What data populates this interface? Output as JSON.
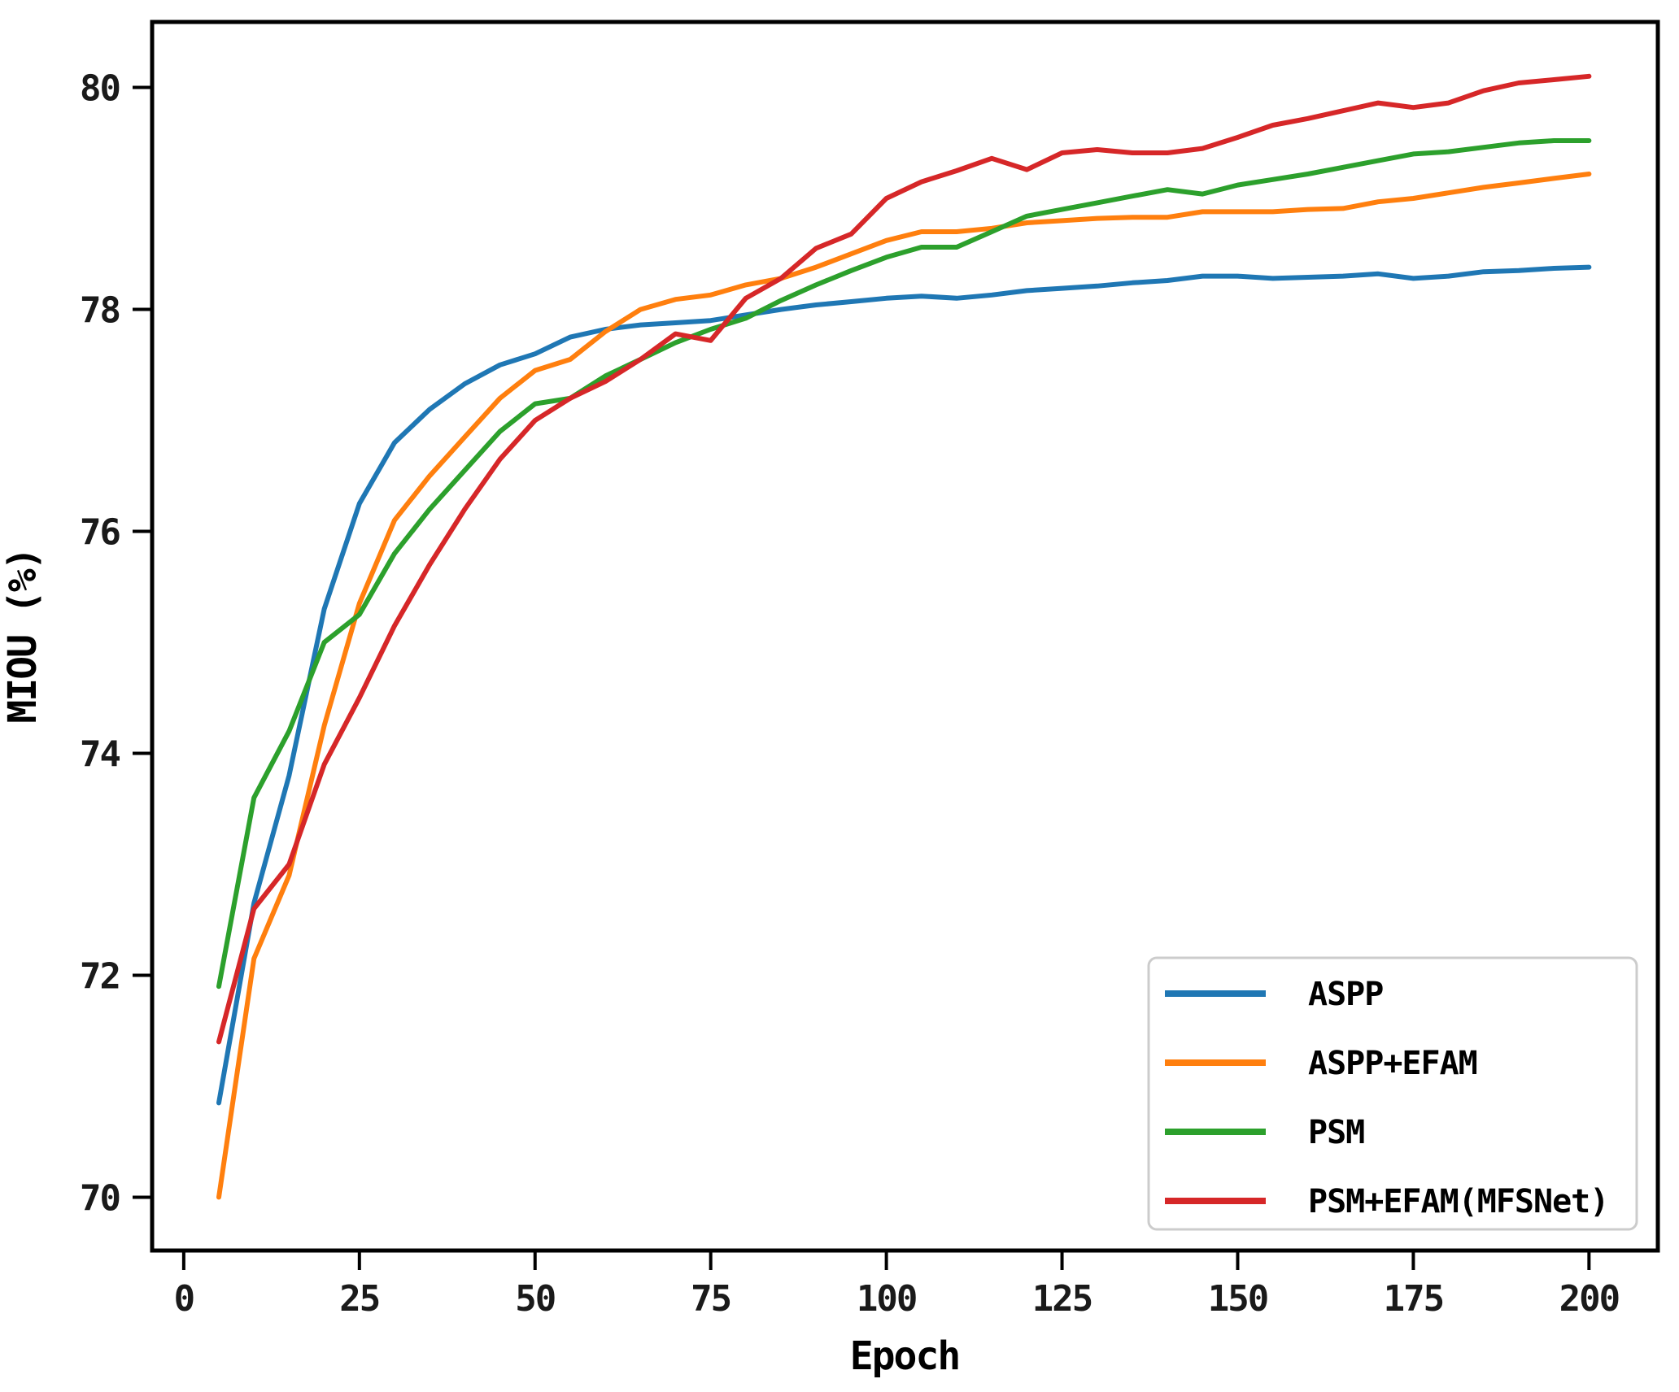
{
  "chart_data": {
    "type": "line",
    "title": "",
    "xlabel": "Epoch",
    "ylabel": "MIOU (%)",
    "x": [
      5,
      10,
      15,
      20,
      25,
      30,
      35,
      40,
      45,
      50,
      55,
      60,
      65,
      70,
      75,
      80,
      85,
      90,
      95,
      100,
      105,
      110,
      115,
      120,
      125,
      130,
      135,
      140,
      145,
      150,
      155,
      160,
      165,
      170,
      175,
      180,
      185,
      190,
      195,
      200
    ],
    "series": [
      {
        "name": "ASPP",
        "color": "#1f77b4",
        "values": [
          70.85,
          72.65,
          73.8,
          75.3,
          76.25,
          76.8,
          77.1,
          77.33,
          77.5,
          77.6,
          77.75,
          77.82,
          77.86,
          77.88,
          77.9,
          77.95,
          78.0,
          78.04,
          78.07,
          78.1,
          78.12,
          78.1,
          78.13,
          78.17,
          78.19,
          78.21,
          78.24,
          78.26,
          78.3,
          78.3,
          78.28,
          78.29,
          78.3,
          78.32,
          78.28,
          78.3,
          78.34,
          78.35,
          78.37,
          78.38
        ]
      },
      {
        "name": "ASPP+EFAM",
        "color": "#ff7f0e",
        "values": [
          70.0,
          72.15,
          72.9,
          74.25,
          75.35,
          76.1,
          76.5,
          76.85,
          77.2,
          77.45,
          77.55,
          77.8,
          78.0,
          78.09,
          78.13,
          78.22,
          78.28,
          78.38,
          78.5,
          78.62,
          78.7,
          78.7,
          78.73,
          78.78,
          78.8,
          78.82,
          78.83,
          78.83,
          78.88,
          78.88,
          78.88,
          78.9,
          78.91,
          78.97,
          79.0,
          79.05,
          79.1,
          79.14,
          79.18,
          79.22
        ]
      },
      {
        "name": "PSM",
        "color": "#2ca02c",
        "values": [
          71.9,
          73.6,
          74.2,
          75.0,
          75.25,
          75.8,
          76.2,
          76.55,
          76.9,
          77.15,
          77.2,
          77.4,
          77.55,
          77.7,
          77.82,
          77.92,
          78.08,
          78.22,
          78.35,
          78.47,
          78.56,
          78.56,
          78.7,
          78.84,
          78.9,
          78.96,
          79.02,
          79.08,
          79.04,
          79.12,
          79.17,
          79.22,
          79.28,
          79.34,
          79.4,
          79.42,
          79.46,
          79.5,
          79.52,
          79.52
        ]
      },
      {
        "name": "PSM+EFAM(MFSNet)",
        "color": "#d62728",
        "values": [
          71.4,
          72.6,
          73.0,
          73.9,
          74.5,
          75.15,
          75.7,
          76.2,
          76.65,
          77.0,
          77.2,
          77.35,
          77.55,
          77.78,
          77.72,
          78.1,
          78.28,
          78.55,
          78.68,
          79.0,
          79.15,
          79.25,
          79.36,
          79.26,
          79.41,
          79.44,
          79.41,
          79.41,
          79.45,
          79.55,
          79.66,
          79.72,
          79.79,
          79.86,
          79.82,
          79.86,
          79.97,
          80.04,
          80.07,
          80.1
        ]
      }
    ],
    "xticks": [
      0,
      25,
      50,
      75,
      100,
      125,
      150,
      175,
      200
    ],
    "yticks": [
      70,
      72,
      74,
      76,
      78,
      80
    ],
    "xlim": [
      -4.5,
      209.8
    ],
    "ylim": [
      69.52,
      80.59
    ],
    "grid": false,
    "legend_position": "lower right",
    "background": "#ffffff",
    "axis_color": "#000000",
    "legend_border_color": "#cccccc"
  }
}
